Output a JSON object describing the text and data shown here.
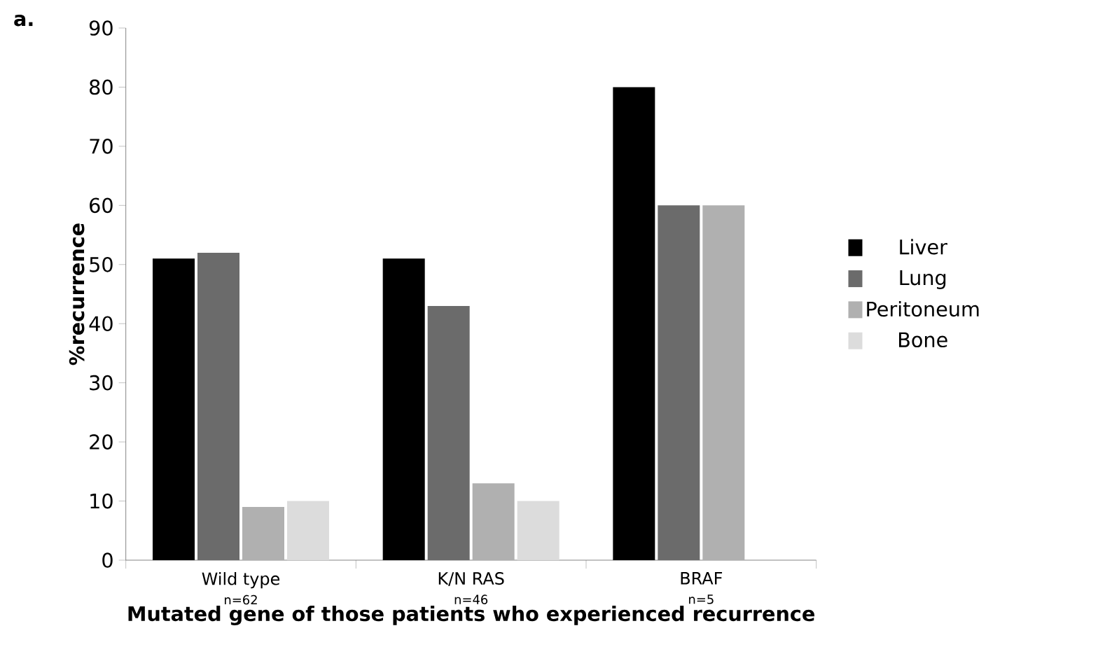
{
  "chart_data": {
    "type": "bar",
    "title": "a.",
    "xlabel": "Mutated gene of those patients who experienced recurrence",
    "ylabel": "%recurrence",
    "categories": [
      "Wild type",
      "K/N RAS",
      "BRAF"
    ],
    "annotations": [
      "n=62",
      "n=46",
      "n=5"
    ],
    "series": [
      {
        "name": "Liver",
        "color": "#000000",
        "values": [
          51,
          51,
          80
        ]
      },
      {
        "name": "Lung",
        "color": "#6b6b6b",
        "values": [
          52,
          43,
          60
        ]
      },
      {
        "name": "Peritoneum",
        "color": "#b0b0b0",
        "values": [
          9,
          13,
          60
        ]
      },
      {
        "name": "Bone",
        "color": "#dcdcdc",
        "values": [
          10,
          10,
          null
        ]
      }
    ],
    "ylim": [
      0,
      90
    ],
    "yticks": [
      0,
      10,
      20,
      30,
      40,
      50,
      60,
      70,
      80,
      90
    ],
    "grid": false,
    "legend": "right"
  }
}
